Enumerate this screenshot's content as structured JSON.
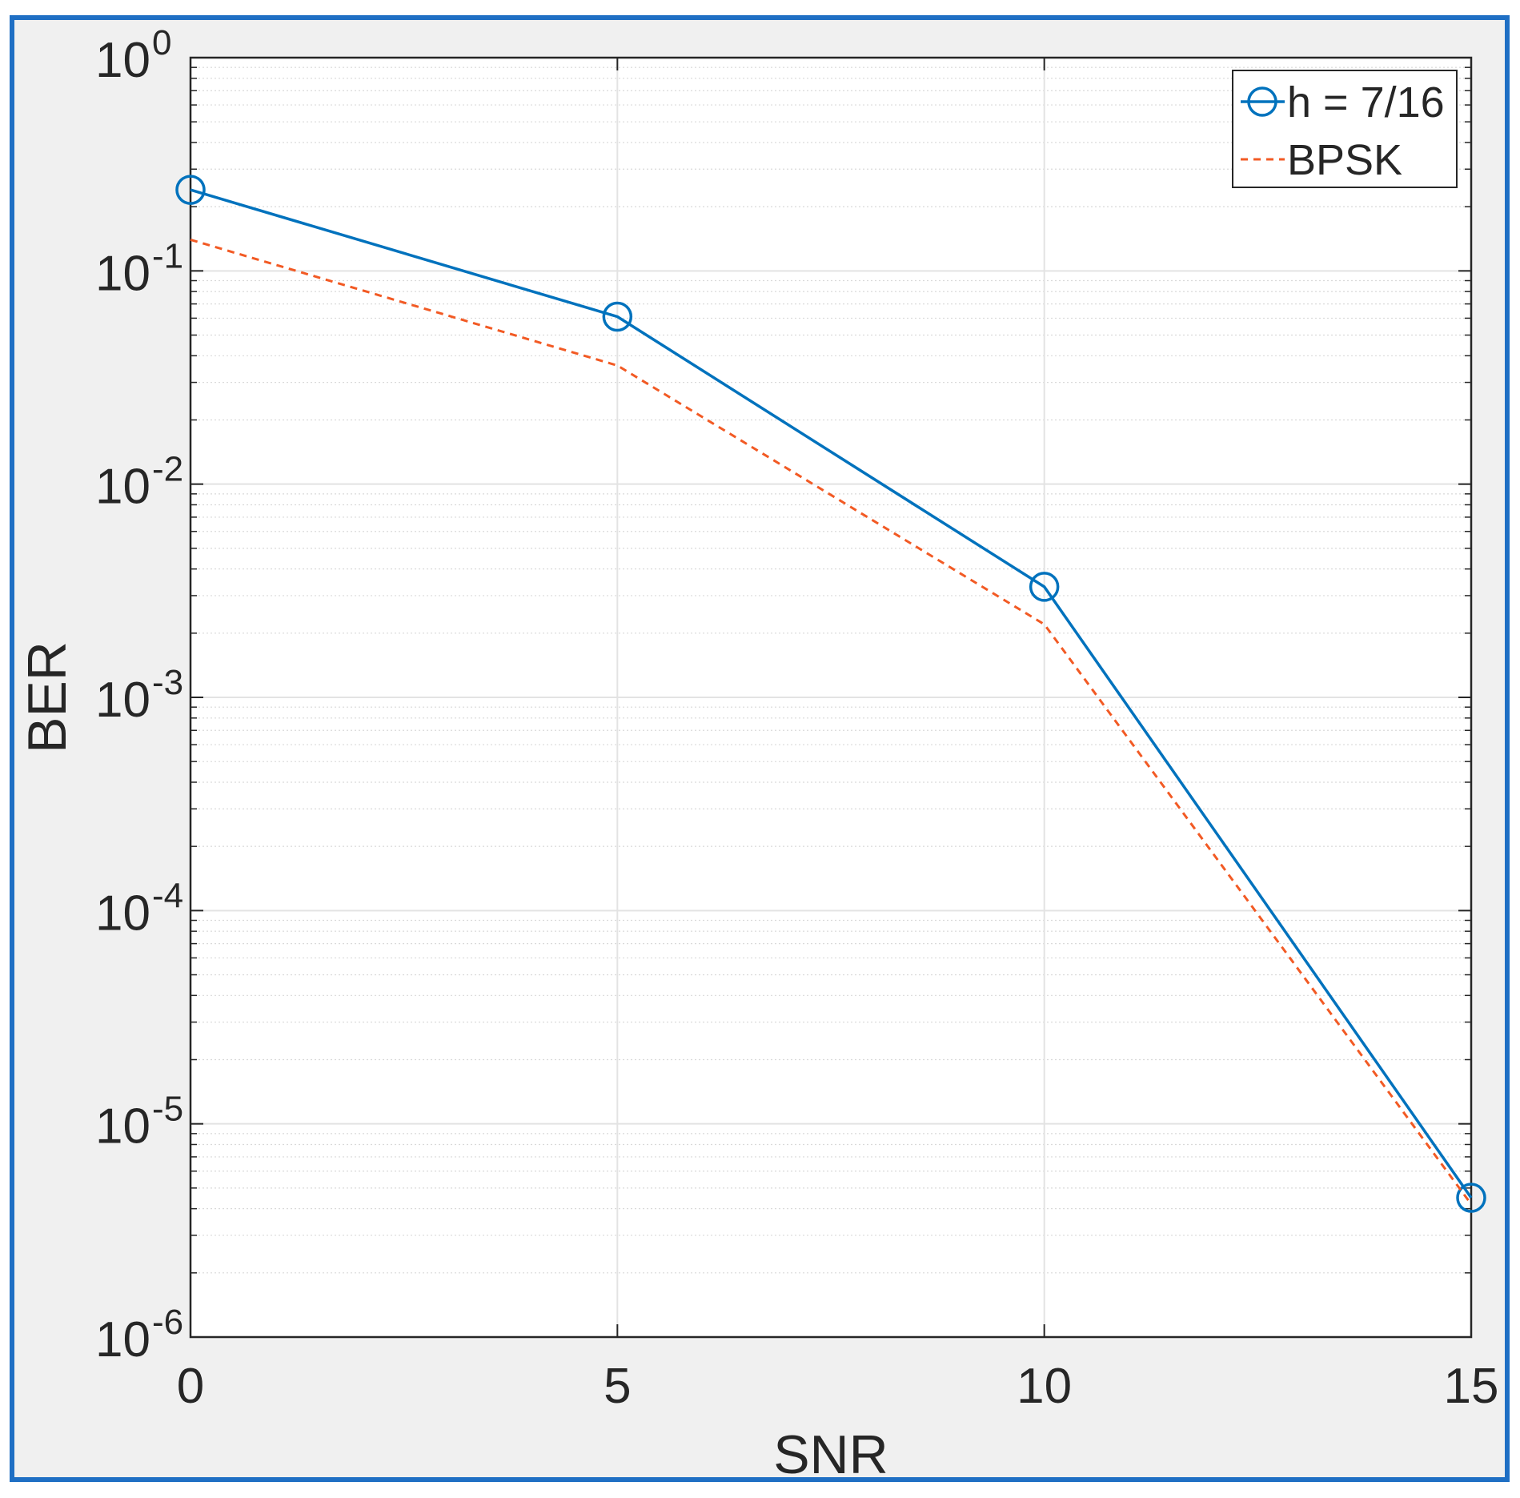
{
  "chart_data": {
    "type": "line",
    "title": "",
    "xlabel": "SNR",
    "ylabel": "BER",
    "yscale": "log",
    "xlim": [
      0,
      15
    ],
    "ylim": [
      1e-06,
      1
    ],
    "xticks": [
      0,
      5,
      10,
      15
    ],
    "xtick_labels": [
      "0",
      "5",
      "10",
      "15"
    ],
    "yticks": [
      {
        "value": 1,
        "base": "10",
        "exp": "0"
      },
      {
        "value": 0.1,
        "base": "10",
        "exp": "-1"
      },
      {
        "value": 0.01,
        "base": "10",
        "exp": "-2"
      },
      {
        "value": 0.001,
        "base": "10",
        "exp": "-3"
      },
      {
        "value": 0.0001,
        "base": "10",
        "exp": "-4"
      },
      {
        "value": 1e-05,
        "base": "10",
        "exp": "-5"
      },
      {
        "value": 1e-06,
        "base": "10",
        "exp": "-6"
      }
    ],
    "grid": true,
    "minor_grid": true,
    "legend_position": "top-right",
    "series": [
      {
        "name": "h = 7/16",
        "color": "#0072BD",
        "style": "solid",
        "marker": "circle",
        "x": [
          0,
          5,
          10,
          15
        ],
        "y": [
          0.24,
          0.061,
          0.0033,
          4.5e-06
        ]
      },
      {
        "name": "BPSK",
        "color": "#F25A24",
        "style": "dashed",
        "marker": "none",
        "x": [
          0,
          5,
          10,
          15
        ],
        "y": [
          0.14,
          0.036,
          0.0022,
          4.2e-06
        ]
      }
    ]
  },
  "colors": {
    "frame_border": "#1F6FC4",
    "figure_background": "#F0F0F0",
    "axes_background": "#FFFFFF"
  }
}
